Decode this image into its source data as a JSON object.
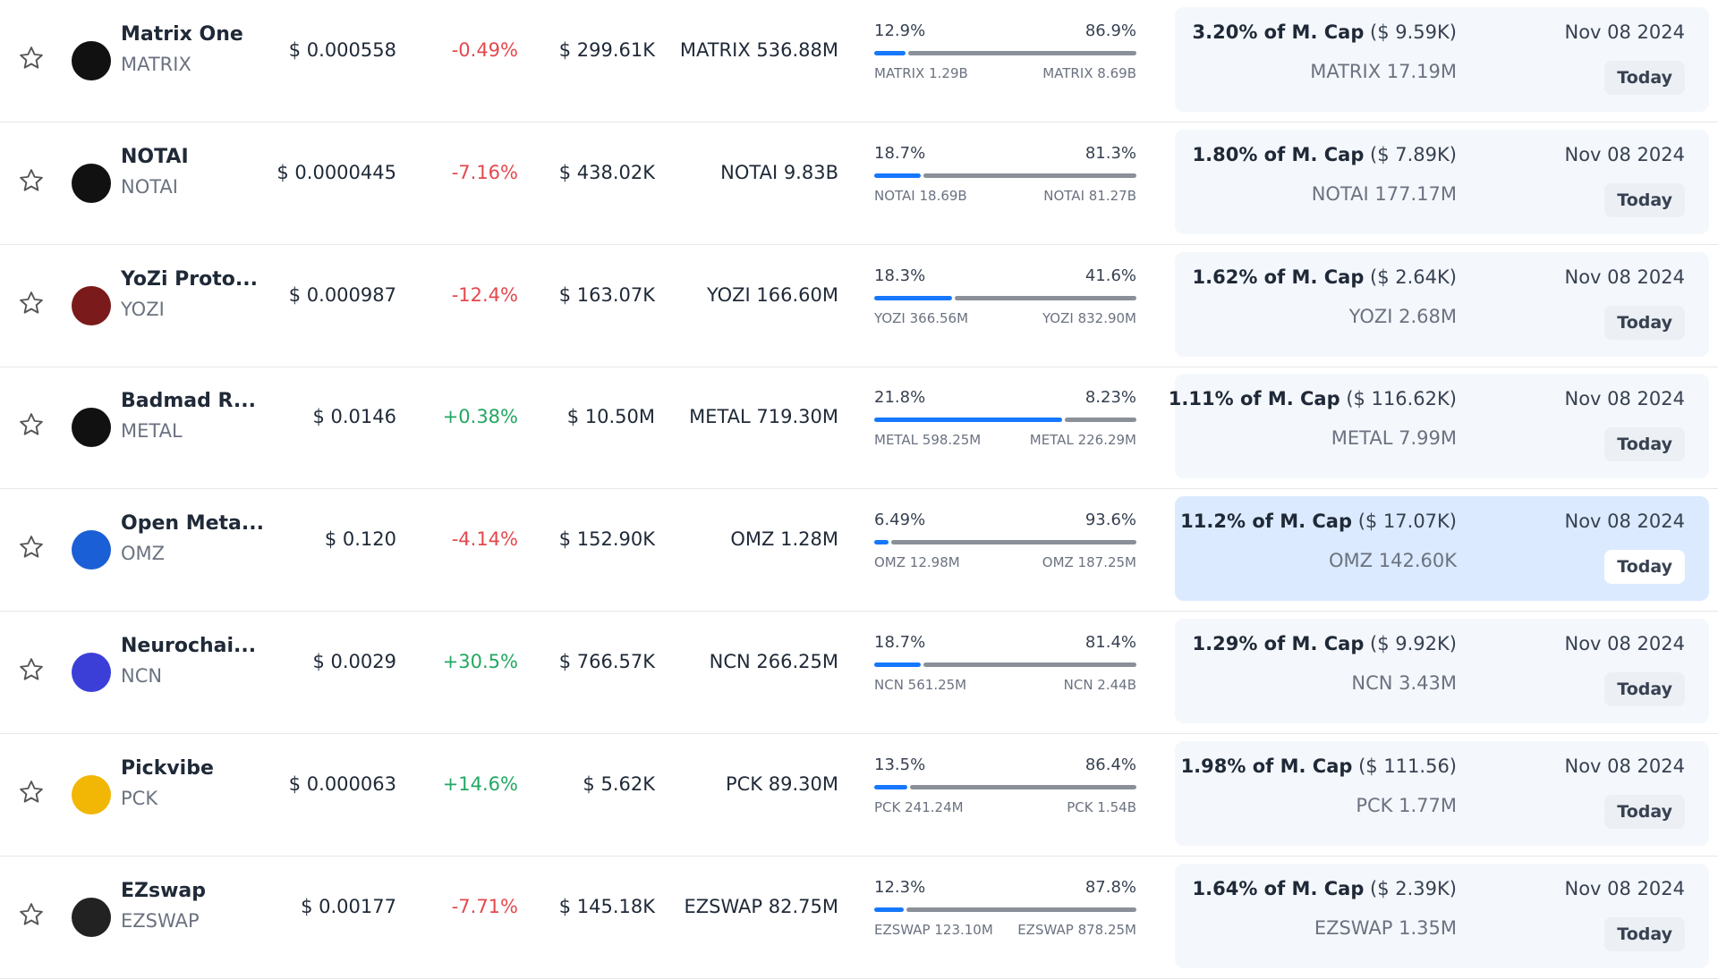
{
  "rows": [
    {
      "name": "Matrix One",
      "symbol": "MATRIX",
      "price": "$ 0.000558",
      "change": "-0.49%",
      "volume": "$ 299.61K",
      "market_cap": "MATRIX 536.88M",
      "unlocked_pct": "12.9%",
      "locked_pct": "86.9%",
      "unlocked_amount": "MATRIX 1.29B",
      "locked_amount": "MATRIX 8.69B",
      "unlock_pct": "3.20% of M. Cap",
      "unlock_value": "($ 9.59K)",
      "unlock_amount": "MATRIX 17.19M",
      "date": "Nov 08 2024",
      "button": "Today",
      "icon_color": "#111"
    },
    {
      "name": "NOTAI",
      "symbol": "NOTAI",
      "price": "$ 0.0000445",
      "change": "-7.16%",
      "volume": "$ 438.02K",
      "market_cap": "NOTAI 9.83B",
      "unlocked_pct": "18.7%",
      "locked_pct": "81.3%",
      "unlocked_amount": "NOTAI 18.69B",
      "locked_amount": "NOTAI 81.27B",
      "unlock_pct": "1.80% of M. Cap",
      "unlock_value": "($ 7.89K)",
      "unlock_amount": "NOTAI 177.17M",
      "date": "Nov 08 2024",
      "button": "Today",
      "icon_color": "#111"
    },
    {
      "name": "YoZi Proto...",
      "symbol": "YOZI",
      "price": "$ 0.000987",
      "change": "-12.4%",
      "volume": "$ 163.07K",
      "market_cap": "YOZI 166.60M",
      "unlocked_pct": "18.3%",
      "locked_pct": "41.6%",
      "unlocked_amount": "YOZI 366.56M",
      "locked_amount": "YOZI 832.90M",
      "unlock_pct": "1.62% of M. Cap",
      "unlock_value": "($ 2.64K)",
      "unlock_amount": "YOZI 2.68M",
      "date": "Nov 08 2024",
      "button": "Today",
      "icon_color": "#7a1a1a"
    },
    {
      "name": "Badmad R...",
      "symbol": "METAL",
      "price": "$ 0.0146",
      "change": "+0.38%",
      "volume": "$ 10.50M",
      "market_cap": "METAL 719.30M",
      "unlocked_pct": "21.8%",
      "locked_pct": "8.23%",
      "unlocked_amount": "METAL 598.25M",
      "locked_amount": "METAL 226.29M",
      "unlock_pct": "1.11% of M. Cap",
      "unlock_value": "($ 116.62K)",
      "unlock_amount": "METAL 7.99M",
      "date": "Nov 08 2024",
      "button": "Today",
      "icon_color": "#111"
    },
    {
      "name": "Open Meta...",
      "symbol": "OMZ",
      "price": "$ 0.120",
      "change": "-4.14%",
      "volume": "$ 152.90K",
      "market_cap": "OMZ 1.28M",
      "unlocked_pct": "6.49%",
      "locked_pct": "93.6%",
      "unlocked_amount": "OMZ 12.98M",
      "locked_amount": "OMZ 187.25M",
      "unlock_pct": "11.2% of M. Cap",
      "unlock_value": "($ 17.07K)",
      "unlock_amount": "OMZ 142.60K",
      "date": "Nov 08 2024",
      "button": "Today",
      "icon_color": "#1b5fd6",
      "highlight": true
    },
    {
      "name": "Neurochai...",
      "symbol": "NCN",
      "price": "$ 0.0029",
      "change": "+30.5%",
      "volume": "$ 766.57K",
      "market_cap": "NCN 266.25M",
      "unlocked_pct": "18.7%",
      "locked_pct": "81.4%",
      "unlocked_amount": "NCN 561.25M",
      "locked_amount": "NCN 2.44B",
      "unlock_pct": "1.29% of M. Cap",
      "unlock_value": "($ 9.92K)",
      "unlock_amount": "NCN 3.43M",
      "date": "Nov 08 2024",
      "button": "Today",
      "icon_color": "#3b3fd8"
    },
    {
      "name": "Pickvibe",
      "symbol": "PCK",
      "price": "$ 0.000063",
      "change": "+14.6%",
      "volume": "$ 5.62K",
      "market_cap": "PCK 89.30M",
      "unlocked_pct": "13.5%",
      "locked_pct": "86.4%",
      "unlocked_amount": "PCK 241.24M",
      "locked_amount": "PCK 1.54B",
      "unlock_pct": "1.98% of M. Cap",
      "unlock_value": "($ 111.56)",
      "unlock_amount": "PCK 1.77M",
      "date": "Nov 08 2024",
      "button": "Today",
      "icon_color": "#f2b705"
    },
    {
      "name": "EZswap",
      "symbol": "EZSWAP",
      "price": "$ 0.00177",
      "change": "-7.71%",
      "volume": "$ 145.18K",
      "market_cap": "EZSWAP 82.75M",
      "unlocked_pct": "12.3%",
      "locked_pct": "87.8%",
      "unlocked_amount": "EZSWAP 123.10M",
      "locked_amount": "EZSWAP 878.25M",
      "unlock_pct": "1.64% of M. Cap",
      "unlock_value": "($ 2.39K)",
      "unlock_amount": "EZSWAP 1.35M",
      "date": "Nov 08 2024",
      "button": "Today",
      "icon_color": "#222"
    }
  ]
}
